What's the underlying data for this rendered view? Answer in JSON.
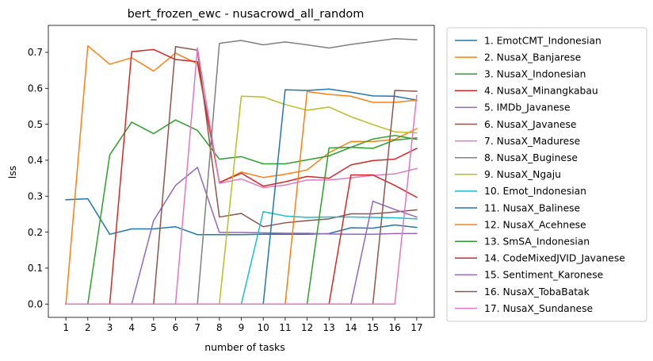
{
  "chart_data": {
    "type": "line",
    "title": "bert_frozen_ewc - nusacrowd_all_random",
    "xlabel": "number of tasks",
    "ylabel": "lss",
    "x": [
      1,
      2,
      3,
      4,
      5,
      6,
      7,
      8,
      9,
      10,
      11,
      12,
      13,
      14,
      15,
      16,
      17
    ],
    "xlim": [
      0.2,
      17.8
    ],
    "ylim": [
      -0.037,
      0.775
    ],
    "yticks": [
      0.0,
      0.1,
      0.2,
      0.3,
      0.4,
      0.5,
      0.6,
      0.7
    ],
    "ytick_labels": [
      "0.0",
      "0.1",
      "0.2",
      "0.3",
      "0.4",
      "0.5",
      "0.6",
      "0.7"
    ],
    "legend_position": "right, outside plot",
    "series": [
      {
        "name": "1. EmotCMT_Indonesian",
        "color": "#1f77b4",
        "values": [
          0.29,
          0.293,
          0.194,
          0.209,
          0.209,
          0.215,
          0.193,
          0.193,
          0.193,
          0.194,
          0.194,
          0.194,
          0.196,
          0.212,
          0.211,
          0.22,
          0.213
        ]
      },
      {
        "name": "2. NusaX_Banjarese",
        "color": "#ff7f0e",
        "values": [
          0.0,
          0.718,
          0.667,
          0.685,
          0.648,
          0.698,
          0.668,
          0.338,
          0.367,
          0.352,
          0.361,
          0.373,
          0.421,
          0.452,
          0.452,
          0.458,
          0.488
        ]
      },
      {
        "name": "3. NusaX_Indonesian",
        "color": "#2ca02c",
        "values": [
          0.0,
          0.0,
          0.415,
          0.506,
          0.474,
          0.512,
          0.483,
          0.403,
          0.41,
          0.39,
          0.39,
          0.401,
          0.412,
          0.436,
          0.433,
          0.456,
          0.462
        ]
      },
      {
        "name": "4. NusaX_Minangkabau",
        "color": "#d62728",
        "values": [
          0.0,
          0.0,
          0.0,
          0.702,
          0.708,
          0.68,
          0.674,
          0.338,
          0.364,
          0.328,
          0.34,
          0.355,
          0.35,
          0.387,
          0.399,
          0.403,
          0.433
        ]
      },
      {
        "name": "5. IMDb_Javanese",
        "color": "#9467bd",
        "values": [
          0.0,
          0.0,
          0.0,
          0.0,
          0.232,
          0.33,
          0.38,
          0.199,
          0.199,
          0.198,
          0.197,
          0.197,
          0.195,
          0.194,
          0.194,
          0.196,
          0.196
        ]
      },
      {
        "name": "6. NusaX_Javanese",
        "color": "#8c564b",
        "values": [
          0.0,
          0.0,
          0.0,
          0.0,
          0.0,
          0.716,
          0.706,
          0.242,
          0.252,
          0.215,
          0.226,
          0.232,
          0.237,
          0.251,
          0.251,
          0.256,
          0.262
        ]
      },
      {
        "name": "7. NusaX_Madurese",
        "color": "#e377c2",
        "values": [
          0.0,
          0.0,
          0.0,
          0.0,
          0.0,
          0.0,
          0.712,
          0.336,
          0.348,
          0.324,
          0.331,
          0.345,
          0.345,
          0.351,
          0.358,
          0.362,
          0.377
        ]
      },
      {
        "name": "8. NusaX_Buginese",
        "color": "#7f7f7f",
        "values": [
          0.0,
          0.0,
          0.0,
          0.0,
          0.0,
          0.0,
          0.0,
          0.725,
          0.733,
          0.721,
          0.729,
          0.721,
          0.712,
          0.722,
          0.73,
          0.738,
          0.735
        ]
      },
      {
        "name": "9. NusaX_Ngaju",
        "color": "#bcbd22",
        "values": [
          0.0,
          0.0,
          0.0,
          0.0,
          0.0,
          0.0,
          0.0,
          0.0,
          0.578,
          0.576,
          0.555,
          0.539,
          0.548,
          0.521,
          0.499,
          0.479,
          0.476
        ]
      },
      {
        "name": "10. Emot_Indonesian",
        "color": "#17becf",
        "values": [
          0.0,
          0.0,
          0.0,
          0.0,
          0.0,
          0.0,
          0.0,
          0.0,
          0.0,
          0.257,
          0.245,
          0.241,
          0.242,
          0.242,
          0.241,
          0.24,
          0.237
        ]
      },
      {
        "name": "11. NusaX_Balinese",
        "color": "#1f77b4",
        "values": [
          0.0,
          0.0,
          0.0,
          0.0,
          0.0,
          0.0,
          0.0,
          0.0,
          0.0,
          0.0,
          0.596,
          0.594,
          0.598,
          0.589,
          0.579,
          0.578,
          0.567
        ]
      },
      {
        "name": "12. NusaX_Acehnese",
        "color": "#ff7f0e",
        "values": [
          0.0,
          0.0,
          0.0,
          0.0,
          0.0,
          0.0,
          0.0,
          0.0,
          0.0,
          0.0,
          0.0,
          0.591,
          0.583,
          0.578,
          0.561,
          0.561,
          0.567
        ]
      },
      {
        "name": "13. SmSA_Indonesian",
        "color": "#2ca02c",
        "values": [
          0.0,
          0.0,
          0.0,
          0.0,
          0.0,
          0.0,
          0.0,
          0.0,
          0.0,
          0.0,
          0.0,
          0.0,
          0.434,
          0.436,
          0.459,
          0.469,
          0.458
        ]
      },
      {
        "name": "14. CodeMixedJVID_Javanese",
        "color": "#d62728",
        "values": [
          0.0,
          0.0,
          0.0,
          0.0,
          0.0,
          0.0,
          0.0,
          0.0,
          0.0,
          0.0,
          0.0,
          0.0,
          0.0,
          0.359,
          0.359,
          0.33,
          0.297
        ]
      },
      {
        "name": "15. Sentiment_Karonese",
        "color": "#9467bd",
        "values": [
          0.0,
          0.0,
          0.0,
          0.0,
          0.0,
          0.0,
          0.0,
          0.0,
          0.0,
          0.0,
          0.0,
          0.0,
          0.0,
          0.0,
          0.286,
          0.263,
          0.242
        ]
      },
      {
        "name": "16. NusaX_TobaBatak",
        "color": "#8c564b",
        "values": [
          0.0,
          0.0,
          0.0,
          0.0,
          0.0,
          0.0,
          0.0,
          0.0,
          0.0,
          0.0,
          0.0,
          0.0,
          0.0,
          0.0,
          0.0,
          0.594,
          0.592
        ]
      },
      {
        "name": "17. NusaX_Sundanese",
        "color": "#e377c2",
        "values": [
          0.0,
          0.0,
          0.0,
          0.0,
          0.0,
          0.0,
          0.0,
          0.0,
          0.0,
          0.0,
          0.0,
          0.0,
          0.0,
          0.0,
          0.0,
          0.0,
          0.58
        ]
      }
    ]
  }
}
